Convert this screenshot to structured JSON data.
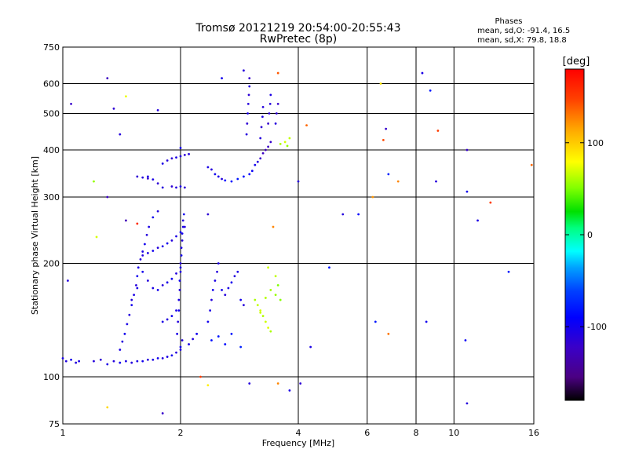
{
  "chart_data": {
    "type": "scatter",
    "title": "Tromsø 20121219 20:54:00-20:55:43",
    "subtitle": "RwPretec (8p)",
    "xlabel": "Frequency [MHz]",
    "ylabel": "Stationary phase Virtual Height [km]",
    "xscale": "log",
    "yscale": "log",
    "xlim": [
      1,
      16
    ],
    "ylim": [
      75,
      750
    ],
    "grid": true,
    "xticks": [
      1,
      2,
      4,
      6,
      8,
      10,
      16
    ],
    "xticklabels": [
      "1",
      "2",
      "4",
      "6",
      "8",
      "10",
      "16"
    ],
    "xgrid": [
      2,
      4,
      6,
      8,
      10
    ],
    "yticks": [
      75,
      100,
      200,
      300,
      400,
      500,
      600,
      750
    ],
    "yticklabels": [
      "75",
      "100",
      "200",
      "300",
      "400",
      "500",
      "600",
      "750"
    ],
    "ygrid": [
      100,
      200,
      300,
      400,
      500,
      600
    ],
    "stats": {
      "heading": "Phases",
      "line1": "mean, sd,O: -91.4, 16.5",
      "line2": "mean, sd,X:  79.8, 18.8"
    },
    "colorbar": {
      "label": "[deg]",
      "range": [
        -180,
        180
      ],
      "ticks": [
        100,
        0,
        -100
      ],
      "ticklabels": [
        "100",
        "0",
        "-100"
      ]
    },
    "series": [
      {
        "points": [
          [
            1.0,
            112,
            -105
          ],
          [
            1.02,
            110,
            -108
          ],
          [
            1.05,
            111,
            -100
          ],
          [
            1.08,
            109,
            -110
          ],
          [
            1.1,
            110,
            -105
          ],
          [
            1.2,
            110,
            -110
          ],
          [
            1.25,
            111,
            -115
          ],
          [
            1.3,
            108,
            -105
          ],
          [
            1.35,
            110,
            -110
          ],
          [
            1.4,
            109,
            -100
          ],
          [
            1.45,
            110,
            -105
          ],
          [
            1.5,
            109,
            -110
          ],
          [
            1.55,
            110,
            -105
          ],
          [
            1.6,
            110,
            -100
          ],
          [
            1.65,
            111,
            -110
          ],
          [
            1.7,
            111,
            -105
          ],
          [
            1.75,
            112,
            -100
          ],
          [
            1.8,
            112,
            -110
          ],
          [
            1.85,
            113,
            -105
          ],
          [
            1.9,
            114,
            -100
          ],
          [
            1.95,
            116,
            -110
          ],
          [
            2.0,
            118,
            -105
          ]
        ]
      },
      {
        "points": [
          [
            1.4,
            118,
            -105
          ],
          [
            1.42,
            124,
            -110
          ],
          [
            1.44,
            130,
            -100
          ],
          [
            1.46,
            138,
            -105
          ],
          [
            1.48,
            146,
            -110
          ],
          [
            1.5,
            155,
            -100
          ],
          [
            1.52,
            165,
            -105
          ],
          [
            1.54,
            175,
            -110
          ],
          [
            1.55,
            185,
            -100
          ],
          [
            1.56,
            195,
            -105
          ],
          [
            1.58,
            205,
            -110
          ],
          [
            1.6,
            215,
            -105
          ],
          [
            1.62,
            225,
            -100
          ],
          [
            1.64,
            238,
            -110
          ],
          [
            1.66,
            250,
            -105
          ],
          [
            1.7,
            265,
            -100
          ],
          [
            1.75,
            275,
            -110
          ]
        ]
      },
      {
        "points": [
          [
            1.5,
            160,
            -110
          ],
          [
            1.55,
            172,
            -105
          ],
          [
            1.6,
            190,
            -100
          ],
          [
            1.65,
            180,
            -110
          ],
          [
            1.7,
            172,
            -105
          ],
          [
            1.75,
            170,
            -100
          ],
          [
            1.8,
            175,
            -110
          ],
          [
            1.85,
            178,
            -105
          ],
          [
            1.9,
            182,
            -100
          ],
          [
            1.95,
            188,
            -110
          ],
          [
            2.0,
            195,
            -105
          ],
          [
            1.6,
            210,
            -110
          ],
          [
            1.65,
            213,
            -105
          ],
          [
            1.7,
            216,
            -100
          ],
          [
            1.75,
            220,
            -110
          ],
          [
            1.8,
            222,
            -105
          ],
          [
            1.85,
            226,
            -100
          ],
          [
            1.9,
            230,
            -110
          ],
          [
            1.95,
            236,
            -105
          ],
          [
            2.0,
            242,
            -100
          ],
          [
            2.05,
            250,
            -110
          ],
          [
            1.8,
            140,
            -105
          ],
          [
            1.85,
            142,
            -110
          ],
          [
            1.9,
            145,
            -100
          ],
          [
            1.95,
            150,
            -105
          ]
        ]
      },
      {
        "points": [
          [
            1.96,
            130,
            -105
          ],
          [
            1.97,
            140,
            -110
          ],
          [
            1.98,
            150,
            -100
          ],
          [
            1.98,
            160,
            -105
          ],
          [
            1.99,
            170,
            -110
          ],
          [
            1.99,
            180,
            -100
          ],
          [
            2.0,
            190,
            -105
          ],
          [
            2.0,
            200,
            -110
          ],
          [
            2.01,
            210,
            -100
          ],
          [
            2.01,
            220,
            -105
          ],
          [
            2.02,
            230,
            -110
          ],
          [
            2.02,
            240,
            -100
          ],
          [
            2.03,
            250,
            -105
          ],
          [
            2.03,
            260,
            -110
          ],
          [
            2.04,
            270,
            -100
          ],
          [
            2.0,
            120,
            -100
          ],
          [
            2.02,
            125,
            -110
          ],
          [
            2.1,
            122,
            -105
          ],
          [
            2.15,
            126,
            -110
          ],
          [
            2.2,
            130,
            -100
          ]
        ]
      },
      {
        "points": [
          [
            1.55,
            340,
            -115
          ],
          [
            1.6,
            338,
            -110
          ],
          [
            1.65,
            336,
            -120
          ],
          [
            1.7,
            334,
            -105
          ],
          [
            1.75,
            326,
            -115
          ],
          [
            1.8,
            318,
            -110
          ],
          [
            1.9,
            320,
            -115
          ],
          [
            1.95,
            318,
            -110
          ],
          [
            2.0,
            320,
            -105
          ],
          [
            2.05,
            318,
            -115
          ],
          [
            1.85,
            375,
            -110
          ],
          [
            1.9,
            380,
            -115
          ],
          [
            1.95,
            382,
            -105
          ],
          [
            2.0,
            385,
            -110
          ],
          [
            2.05,
            388,
            -115
          ],
          [
            2.1,
            390,
            -110
          ],
          [
            1.8,
            368,
            -105
          ],
          [
            2.0,
            405,
            -100
          ]
        ]
      },
      {
        "points": [
          [
            2.35,
            140,
            -100
          ],
          [
            2.38,
            150,
            -105
          ],
          [
            2.4,
            160,
            -110
          ],
          [
            2.42,
            170,
            -100
          ],
          [
            2.45,
            180,
            -105
          ],
          [
            2.48,
            190,
            -110
          ],
          [
            2.5,
            200,
            -105
          ],
          [
            2.55,
            170,
            -100
          ],
          [
            2.6,
            165,
            -110
          ],
          [
            2.65,
            172,
            -105
          ],
          [
            2.7,
            178,
            -100
          ],
          [
            2.75,
            185,
            -110
          ],
          [
            2.8,
            190,
            -105
          ],
          [
            2.85,
            160,
            -100
          ],
          [
            2.9,
            155,
            -110
          ],
          [
            2.4,
            125,
            -85
          ],
          [
            2.5,
            128,
            -80
          ],
          [
            2.6,
            122,
            -85
          ],
          [
            2.7,
            130,
            -80
          ],
          [
            2.85,
            120,
            -75
          ]
        ]
      },
      {
        "points": [
          [
            2.35,
            360,
            -105
          ],
          [
            2.4,
            355,
            -110
          ],
          [
            2.45,
            345,
            -100
          ],
          [
            2.5,
            340,
            -105
          ],
          [
            2.55,
            335,
            -110
          ],
          [
            2.6,
            332,
            -90
          ],
          [
            2.7,
            330,
            -85
          ],
          [
            2.8,
            335,
            -80
          ],
          [
            2.9,
            340,
            -85
          ],
          [
            3.0,
            345,
            -90
          ],
          [
            3.05,
            352,
            -95
          ],
          [
            3.1,
            365,
            -100
          ],
          [
            3.15,
            372,
            -110
          ],
          [
            3.2,
            380,
            -120
          ],
          [
            3.25,
            392,
            -125
          ],
          [
            3.3,
            400,
            -130
          ],
          [
            3.35,
            408,
            -125
          ],
          [
            3.4,
            420,
            -120
          ]
        ]
      },
      {
        "points": [
          [
            2.95,
            440,
            -110
          ],
          [
            2.96,
            470,
            -115
          ],
          [
            2.97,
            500,
            -105
          ],
          [
            2.98,
            530,
            -110
          ],
          [
            2.99,
            560,
            -115
          ],
          [
            3.0,
            590,
            -110
          ],
          [
            3.0,
            620,
            -120
          ],
          [
            3.2,
            430,
            -110
          ],
          [
            3.22,
            460,
            -115
          ],
          [
            3.24,
            490,
            -105
          ],
          [
            3.25,
            520,
            -110
          ],
          [
            3.35,
            470,
            -120
          ],
          [
            3.37,
            500,
            -115
          ],
          [
            3.39,
            530,
            -110
          ],
          [
            3.4,
            560,
            -105
          ],
          [
            3.5,
            470,
            -110
          ],
          [
            3.52,
            500,
            -115
          ],
          [
            3.55,
            530,
            -120
          ]
        ]
      },
      {
        "points": [
          [
            3.1,
            160,
            60
          ],
          [
            3.15,
            155,
            65
          ],
          [
            3.2,
            150,
            70
          ],
          [
            3.25,
            145,
            62
          ],
          [
            3.3,
            140,
            68
          ],
          [
            3.35,
            135,
            72
          ],
          [
            3.4,
            132,
            60
          ],
          [
            3.2,
            148,
            66
          ],
          [
            3.3,
            162,
            62
          ],
          [
            3.4,
            170,
            58
          ],
          [
            3.5,
            165,
            55
          ],
          [
            3.6,
            160,
            52
          ],
          [
            3.55,
            175,
            50
          ],
          [
            3.5,
            185,
            65
          ],
          [
            3.35,
            195,
            68
          ],
          [
            3.6,
            415,
            60
          ],
          [
            3.7,
            420,
            70
          ],
          [
            3.8,
            430,
            65
          ],
          [
            3.75,
            410,
            55
          ]
        ]
      },
      {
        "points": [
          [
            1.05,
            530,
            -120
          ],
          [
            1.3,
            620,
            -125
          ],
          [
            1.35,
            515,
            -115
          ],
          [
            1.4,
            440,
            -110
          ],
          [
            1.3,
            300,
            -125
          ],
          [
            1.45,
            260,
            -130
          ],
          [
            1.65,
            340,
            -105
          ],
          [
            1.75,
            510,
            -110
          ],
          [
            1.8,
            80,
            -120
          ],
          [
            2.35,
            270,
            -115
          ],
          [
            2.55,
            620,
            -100
          ],
          [
            2.9,
            650,
            -110
          ],
          [
            4.0,
            330,
            -110
          ],
          [
            4.05,
            96,
            -115
          ],
          [
            4.3,
            120,
            -105
          ],
          [
            4.8,
            195,
            -80
          ],
          [
            5.2,
            270,
            -110
          ],
          [
            5.7,
            270,
            -90
          ],
          [
            6.3,
            140,
            -80
          ],
          [
            6.7,
            455,
            -120
          ],
          [
            6.8,
            345,
            -75
          ],
          [
            8.3,
            640,
            -105
          ],
          [
            8.5,
            140,
            -100
          ],
          [
            8.7,
            575,
            -80
          ],
          [
            9.0,
            330,
            -110
          ],
          [
            10.7,
            125,
            -95
          ],
          [
            10.8,
            85,
            -110
          ],
          [
            10.8,
            400,
            -120
          ],
          [
            10.8,
            310,
            -100
          ],
          [
            11.5,
            260,
            -105
          ],
          [
            13.8,
            190,
            -80
          ],
          [
            3.0,
            96,
            -110
          ],
          [
            3.8,
            92,
            -105
          ],
          [
            1.03,
            180,
            -110
          ]
        ]
      },
      {
        "points": [
          [
            1.3,
            83,
            95
          ],
          [
            1.22,
            235,
            70
          ],
          [
            1.2,
            330,
            55
          ],
          [
            1.45,
            555,
            75
          ],
          [
            2.35,
            95,
            85
          ],
          [
            3.55,
            96,
            125
          ],
          [
            3.45,
            250,
            125
          ],
          [
            3.55,
            640,
            140
          ],
          [
            4.2,
            465,
            135
          ],
          [
            6.2,
            300,
            120
          ],
          [
            6.5,
            600,
            90
          ],
          [
            6.6,
            425,
            145
          ],
          [
            6.8,
            130,
            130
          ],
          [
            7.2,
            330,
            125
          ],
          [
            9.1,
            450,
            150
          ],
          [
            12.4,
            290,
            150
          ],
          [
            15.8,
            365,
            135
          ],
          [
            1.55,
            255,
            160
          ],
          [
            2.25,
            100,
            150
          ]
        ]
      }
    ]
  }
}
